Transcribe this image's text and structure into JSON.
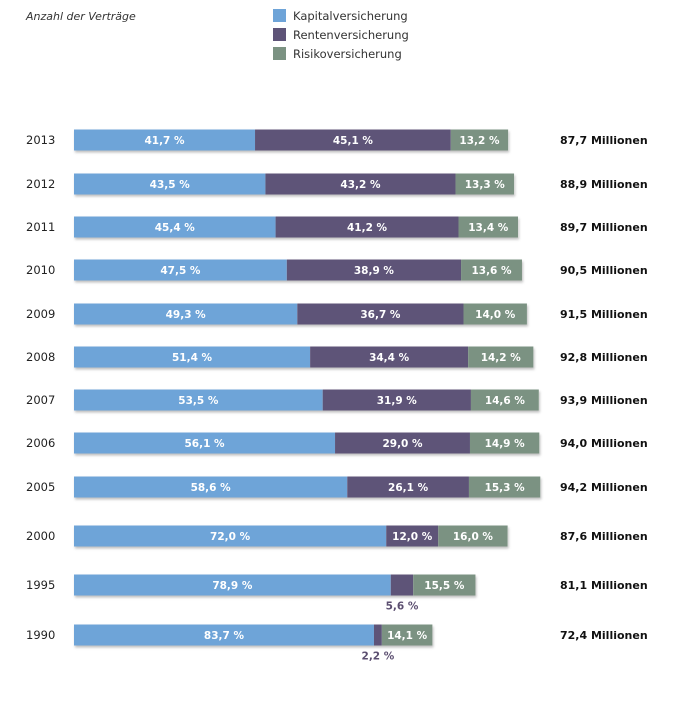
{
  "chart_data": {
    "type": "bar",
    "orientation": "horizontal",
    "stacked": true,
    "normalized_percent": true,
    "subtitle": "Anzahl der Verträge",
    "title": "",
    "xlabel": "",
    "ylabel": "",
    "grid": false,
    "legend_position": "top-center",
    "unit": "%",
    "total_unit": "Millionen",
    "categories": [
      "2013",
      "2012",
      "2011",
      "2010",
      "2009",
      "2008",
      "2007",
      "2006",
      "2005",
      "2000",
      "1995",
      "1990"
    ],
    "series": [
      {
        "name": "Kapitalversicherung",
        "color": "#6ea4d8",
        "values": [
          41.7,
          43.5,
          45.4,
          47.5,
          49.3,
          51.4,
          53.5,
          56.1,
          58.6,
          72.0,
          78.9,
          83.7
        ],
        "labels": [
          "41,7 %",
          "43,5 %",
          "45,4 %",
          "47,5 %",
          "49,3 %",
          "51,4 %",
          "53,5 %",
          "56,1 %",
          "58,6 %",
          "72,0 %",
          "78,9 %",
          "83,7 %"
        ]
      },
      {
        "name": "Rentenversicherung",
        "color": "#5e5478",
        "values": [
          45.1,
          43.2,
          41.2,
          38.9,
          36.7,
          34.4,
          31.9,
          29.0,
          26.1,
          12.0,
          5.6,
          2.2
        ],
        "labels": [
          "45,1 %",
          "43,2 %",
          "41,2 %",
          "38,9 %",
          "36,7 %",
          "34,4 %",
          "31,9 %",
          "29,0 %",
          "26,1 %",
          "12,0 %",
          "5,6 %",
          "2,2 %"
        ]
      },
      {
        "name": "Risikoversicherung",
        "color": "#7b9282",
        "values": [
          13.2,
          13.3,
          13.4,
          13.6,
          14.0,
          14.2,
          14.6,
          14.9,
          15.3,
          16.0,
          15.5,
          14.1
        ],
        "labels": [
          "13,2 %",
          "13,3 %",
          "13,4 %",
          "13,6 %",
          "14,0 %",
          "14,2 %",
          "14,6 %",
          "14,9 %",
          "15,3 %",
          "16,0 %",
          "15,5 %",
          "14,1 %"
        ]
      }
    ],
    "totals": [
      87.7,
      88.9,
      89.7,
      90.5,
      91.5,
      92.8,
      93.9,
      94.0,
      94.2,
      87.6,
      81.1,
      72.4
    ],
    "total_labels": [
      "87,7 Millionen",
      "88,9 Millionen",
      "89,7 Millionen",
      "90,5 Millionen",
      "91,5 Millionen",
      "92,8 Millionen",
      "93,9 Millionen",
      "94,0 Millionen",
      "94,2 Millionen",
      "87,6 Millionen",
      "81,1 Millionen",
      "72,4 Millionen"
    ],
    "note": "Bar length is proportional to the total number of contracts (Millionen)."
  }
}
